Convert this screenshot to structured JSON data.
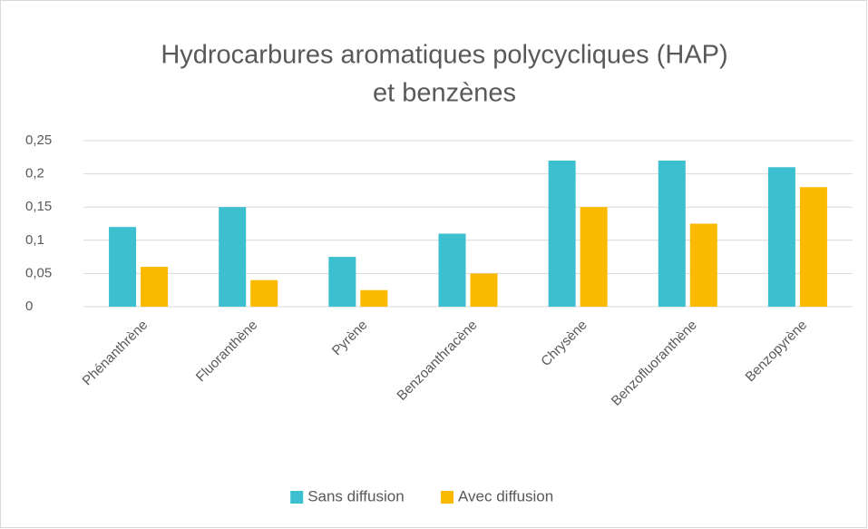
{
  "chart_data": {
    "type": "bar",
    "title": [
      "Hydrocarbures aromatiques polycycliques (HAP)",
      "et benzènes"
    ],
    "categories": [
      "Phénanthrène",
      "Fluoranthène",
      "Pyrène",
      "Benzoanthracène",
      "Chrysène",
      "Benzofluoranthène",
      "Benzopyrène"
    ],
    "series": [
      {
        "name": "Sans diffusion",
        "color": "#3cbfcf",
        "values": [
          0.12,
          0.15,
          0.075,
          0.11,
          0.22,
          0.22,
          0.21
        ]
      },
      {
        "name": "Avec diffusion",
        "color": "#fbb900",
        "values": [
          0.06,
          0.04,
          0.025,
          0.05,
          0.15,
          0.125,
          0.18
        ]
      }
    ],
    "ylim": [
      0,
      0.25
    ],
    "yticks": [
      0,
      {
        "value": 0.05,
        "label": "0,05"
      },
      {
        "value": 0.1,
        "label": "0,1"
      },
      {
        "value": 0.15,
        "label": "0,15"
      },
      {
        "value": 0.2,
        "label": "0,2"
      },
      {
        "value": 0.25,
        "label": "0,25"
      }
    ],
    "grid": true,
    "legend": "bottom"
  }
}
